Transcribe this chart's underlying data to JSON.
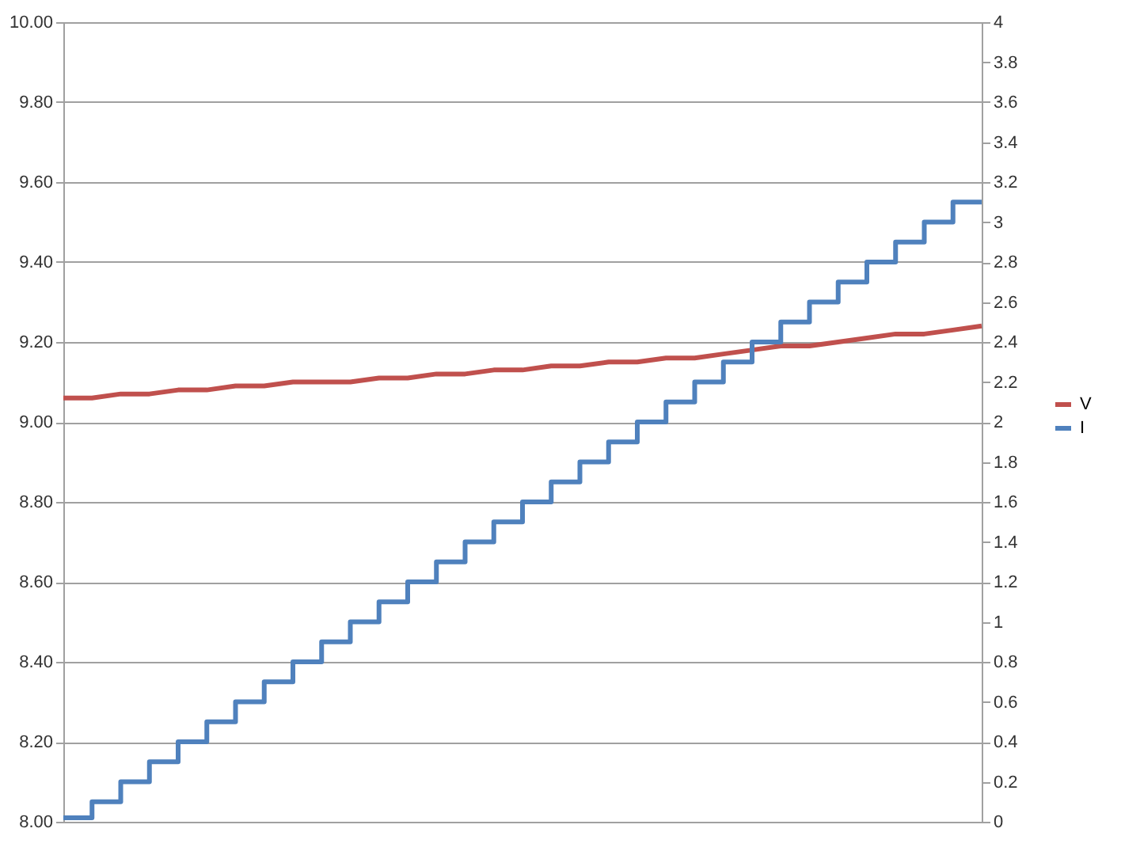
{
  "chart_data": {
    "type": "line",
    "categories": [
      null,
      null,
      null,
      null,
      null,
      null,
      null,
      null,
      null,
      null,
      null,
      null,
      null,
      null,
      null,
      null,
      null,
      null,
      null,
      null,
      null,
      null,
      null,
      null,
      null,
      null,
      null,
      null,
      null,
      null,
      null,
      null,
      null
    ],
    "series": [
      {
        "name": "V",
        "color": "#c0504d",
        "type": "line",
        "axis": "y",
        "values": [
          9.06,
          9.06,
          9.07,
          9.07,
          9.08,
          9.08,
          9.09,
          9.09,
          9.1,
          9.1,
          9.1,
          9.11,
          9.11,
          9.12,
          9.12,
          9.13,
          9.13,
          9.14,
          9.14,
          9.15,
          9.15,
          9.16,
          9.16,
          9.17,
          9.18,
          9.19,
          9.19,
          9.2,
          9.21,
          9.22,
          9.22,
          9.23,
          9.24
        ]
      },
      {
        "name": "I",
        "color": "#4f81bd",
        "type": "step",
        "axis": "y2",
        "values": [
          0.02,
          0.1,
          0.2,
          0.3,
          0.4,
          0.5,
          0.6,
          0.7,
          0.8,
          0.9,
          1.0,
          1.1,
          1.2,
          1.3,
          1.4,
          1.5,
          1.6,
          1.7,
          1.8,
          1.9,
          2.0,
          2.1,
          2.2,
          2.3,
          2.4,
          2.5,
          2.6,
          2.7,
          2.8,
          2.9,
          3.0,
          3.1,
          3.1
        ]
      }
    ],
    "ylim": [
      8,
      10
    ],
    "yticks": [
      {
        "value": 8,
        "label": "8.00"
      },
      {
        "value": 8.2,
        "label": "8.20"
      },
      {
        "value": 8.4,
        "label": "8.40"
      },
      {
        "value": 8.6,
        "label": "8.60"
      },
      {
        "value": 8.8,
        "label": "8.80"
      },
      {
        "value": 9,
        "label": "9.00"
      },
      {
        "value": 9.2,
        "label": "9.20"
      },
      {
        "value": 9.4,
        "label": "9.40"
      },
      {
        "value": 9.6,
        "label": "9.60"
      },
      {
        "value": 9.8,
        "label": "9.80"
      },
      {
        "value": 10,
        "label": "10.00"
      }
    ],
    "y2lim": [
      0,
      4
    ],
    "y2ticks": [
      0,
      0.2,
      0.4,
      0.6,
      0.8,
      1,
      1.2,
      1.4,
      1.6,
      1.8,
      2,
      2.2,
      2.4,
      2.6,
      2.8,
      3,
      3.2,
      3.4,
      3.6,
      3.8,
      4
    ],
    "grid": "y",
    "legend": "right",
    "tick_labels": "y",
    "marker": "none"
  }
}
